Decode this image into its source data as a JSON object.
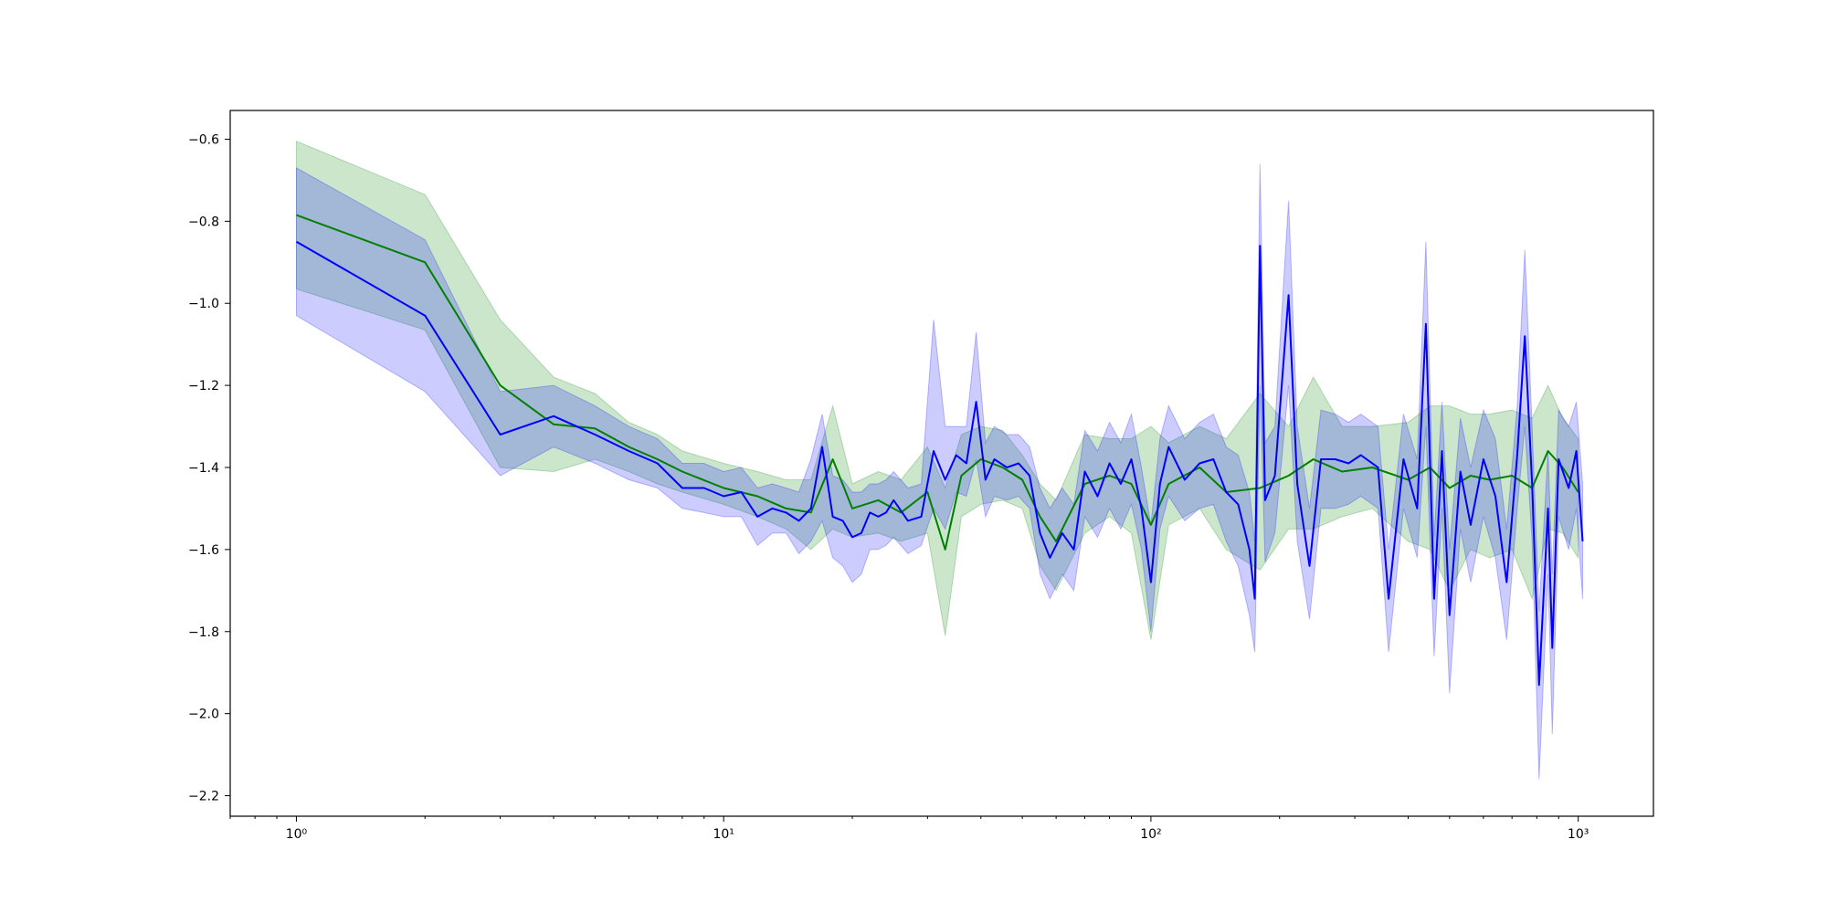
{
  "chart_data": {
    "type": "line",
    "title": "",
    "xlabel": "",
    "ylabel": "",
    "x_scale": "log",
    "xlim": [
      0.7,
      1500
    ],
    "ylim": [
      -2.25,
      -0.53
    ],
    "grid": false,
    "legend": "none",
    "x_ticks": [
      {
        "value": 1,
        "label": "10⁰"
      },
      {
        "value": 10,
        "label": "10¹"
      },
      {
        "value": 100,
        "label": "10²"
      },
      {
        "value": 1000,
        "label": "10³"
      }
    ],
    "y_ticks": [
      {
        "value": -0.6,
        "label": "−0.6"
      },
      {
        "value": -0.8,
        "label": "−0.8"
      },
      {
        "value": -1.0,
        "label": "−1.0"
      },
      {
        "value": -1.2,
        "label": "−1.2"
      },
      {
        "value": -1.4,
        "label": "−1.4"
      },
      {
        "value": -1.6,
        "label": "−1.6"
      },
      {
        "value": -1.8,
        "label": "−1.8"
      },
      {
        "value": -2.0,
        "label": "−2.0"
      },
      {
        "value": -2.2,
        "label": "−2.2"
      }
    ],
    "series": [
      {
        "color": "#008000",
        "band_color": "#008000",
        "band_opacity": 0.2,
        "points": [
          [
            1,
            -0.785,
            -0.965,
            -0.605
          ],
          [
            2,
            -0.9,
            -1.065,
            -0.735
          ],
          [
            3,
            -1.2,
            -1.4,
            -1.04
          ],
          [
            4,
            -1.295,
            -1.41,
            -1.18
          ],
          [
            5,
            -1.305,
            -1.38,
            -1.22
          ],
          [
            6,
            -1.35,
            -1.41,
            -1.29
          ],
          [
            7,
            -1.38,
            -1.44,
            -1.32
          ],
          [
            8,
            -1.41,
            -1.46,
            -1.36
          ],
          [
            10,
            -1.45,
            -1.49,
            -1.39
          ],
          [
            12,
            -1.47,
            -1.52,
            -1.41
          ],
          [
            14,
            -1.5,
            -1.55,
            -1.43
          ],
          [
            16,
            -1.51,
            -1.6,
            -1.43
          ],
          [
            18,
            -1.38,
            -1.55,
            -1.25
          ],
          [
            20,
            -1.5,
            -1.57,
            -1.44
          ],
          [
            23,
            -1.48,
            -1.56,
            -1.41
          ],
          [
            26,
            -1.51,
            -1.58,
            -1.43
          ],
          [
            30,
            -1.46,
            -1.56,
            -1.35
          ],
          [
            33,
            -1.6,
            -1.81,
            -1.45
          ],
          [
            36,
            -1.42,
            -1.52,
            -1.32
          ],
          [
            40,
            -1.38,
            -1.49,
            -1.3
          ],
          [
            45,
            -1.4,
            -1.48,
            -1.31
          ],
          [
            50,
            -1.43,
            -1.5,
            -1.37
          ],
          [
            55,
            -1.52,
            -1.64,
            -1.44
          ],
          [
            60,
            -1.58,
            -1.7,
            -1.48
          ],
          [
            70,
            -1.44,
            -1.56,
            -1.32
          ],
          [
            80,
            -1.42,
            -1.52,
            -1.33
          ],
          [
            90,
            -1.44,
            -1.56,
            -1.33
          ],
          [
            100,
            -1.54,
            -1.82,
            -1.3
          ],
          [
            110,
            -1.44,
            -1.54,
            -1.34
          ],
          [
            130,
            -1.4,
            -1.5,
            -1.3
          ],
          [
            150,
            -1.46,
            -1.6,
            -1.33
          ],
          [
            180,
            -1.45,
            -1.65,
            -1.22
          ],
          [
            210,
            -1.42,
            -1.55,
            -1.3
          ],
          [
            240,
            -1.38,
            -1.55,
            -1.18
          ],
          [
            280,
            -1.41,
            -1.52,
            -1.3
          ],
          [
            330,
            -1.4,
            -1.5,
            -1.3
          ],
          [
            400,
            -1.43,
            -1.58,
            -1.29
          ],
          [
            450,
            -1.4,
            -1.6,
            -1.25
          ],
          [
            500,
            -1.45,
            -1.7,
            -1.25
          ],
          [
            560,
            -1.42,
            -1.6,
            -1.27
          ],
          [
            620,
            -1.43,
            -1.62,
            -1.27
          ],
          [
            700,
            -1.42,
            -1.6,
            -1.26
          ],
          [
            780,
            -1.45,
            -1.72,
            -1.28
          ],
          [
            850,
            -1.36,
            -1.55,
            -1.2
          ],
          [
            920,
            -1.4,
            -1.56,
            -1.28
          ],
          [
            1000,
            -1.46,
            -1.62,
            -1.33
          ]
        ]
      },
      {
        "color": "#0000ff",
        "band_color": "#0000ff",
        "band_opacity": 0.2,
        "points": [
          [
            1,
            -0.85,
            -1.03,
            -0.67
          ],
          [
            2,
            -1.03,
            -1.215,
            -0.845
          ],
          [
            3,
            -1.32,
            -1.42,
            -1.215
          ],
          [
            4,
            -1.275,
            -1.35,
            -1.2
          ],
          [
            5,
            -1.32,
            -1.39,
            -1.25
          ],
          [
            6,
            -1.36,
            -1.43,
            -1.3
          ],
          [
            7,
            -1.39,
            -1.45,
            -1.33
          ],
          [
            8,
            -1.45,
            -1.5,
            -1.39
          ],
          [
            9,
            -1.45,
            -1.51,
            -1.39
          ],
          [
            10,
            -1.47,
            -1.52,
            -1.41
          ],
          [
            11,
            -1.46,
            -1.52,
            -1.4
          ],
          [
            12,
            -1.52,
            -1.59,
            -1.45
          ],
          [
            13,
            -1.5,
            -1.56,
            -1.44
          ],
          [
            14,
            -1.51,
            -1.56,
            -1.45
          ],
          [
            15,
            -1.53,
            -1.61,
            -1.46
          ],
          [
            16,
            -1.5,
            -1.58,
            -1.38
          ],
          [
            17,
            -1.35,
            -1.53,
            -1.27
          ],
          [
            18,
            -1.52,
            -1.62,
            -1.42
          ],
          [
            19,
            -1.53,
            -1.64,
            -1.43
          ],
          [
            20,
            -1.57,
            -1.68,
            -1.46
          ],
          [
            21,
            -1.56,
            -1.66,
            -1.46
          ],
          [
            22,
            -1.51,
            -1.6,
            -1.44
          ],
          [
            23,
            -1.52,
            -1.6,
            -1.44
          ],
          [
            24,
            -1.51,
            -1.59,
            -1.43
          ],
          [
            25,
            -1.48,
            -1.57,
            -1.41
          ],
          [
            27,
            -1.53,
            -1.61,
            -1.45
          ],
          [
            29,
            -1.52,
            -1.59,
            -1.44
          ],
          [
            31,
            -1.36,
            -1.5,
            -1.04
          ],
          [
            33,
            -1.43,
            -1.55,
            -1.3
          ],
          [
            35,
            -1.37,
            -1.46,
            -1.3
          ],
          [
            37,
            -1.39,
            -1.47,
            -1.3
          ],
          [
            39,
            -1.24,
            -1.38,
            -1.07
          ],
          [
            41,
            -1.43,
            -1.52,
            -1.34
          ],
          [
            43,
            -1.38,
            -1.47,
            -1.3
          ],
          [
            46,
            -1.4,
            -1.48,
            -1.32
          ],
          [
            49,
            -1.39,
            -1.47,
            -1.32
          ],
          [
            52,
            -1.42,
            -1.5,
            -1.35
          ],
          [
            55,
            -1.56,
            -1.66,
            -1.45
          ],
          [
            58,
            -1.62,
            -1.72,
            -1.5
          ],
          [
            62,
            -1.56,
            -1.66,
            -1.45
          ],
          [
            66,
            -1.6,
            -1.7,
            -1.49
          ],
          [
            70,
            -1.41,
            -1.52,
            -1.31
          ],
          [
            75,
            -1.47,
            -1.57,
            -1.36
          ],
          [
            80,
            -1.39,
            -1.5,
            -1.29
          ],
          [
            85,
            -1.44,
            -1.55,
            -1.34
          ],
          [
            90,
            -1.38,
            -1.49,
            -1.27
          ],
          [
            95,
            -1.5,
            -1.6,
            -1.4
          ],
          [
            100,
            -1.68,
            -1.8,
            -1.54
          ],
          [
            105,
            -1.44,
            -1.55,
            -1.33
          ],
          [
            110,
            -1.35,
            -1.47,
            -1.25
          ],
          [
            120,
            -1.43,
            -1.53,
            -1.33
          ],
          [
            130,
            -1.39,
            -1.5,
            -1.29
          ],
          [
            140,
            -1.38,
            -1.49,
            -1.27
          ],
          [
            150,
            -1.46,
            -1.58,
            -1.35
          ],
          [
            160,
            -1.49,
            -1.64,
            -1.37
          ],
          [
            170,
            -1.6,
            -1.76,
            -1.46
          ],
          [
            175,
            -1.72,
            -1.85,
            -1.58
          ],
          [
            180,
            -0.86,
            -1.2,
            -0.66
          ],
          [
            185,
            -1.48,
            -1.63,
            -1.34
          ],
          [
            195,
            -1.42,
            -1.56,
            -1.3
          ],
          [
            210,
            -0.98,
            -1.2,
            -0.75
          ],
          [
            220,
            -1.44,
            -1.58,
            -1.3
          ],
          [
            235,
            -1.64,
            -1.77,
            -1.5
          ],
          [
            250,
            -1.38,
            -1.5,
            -1.26
          ],
          [
            270,
            -1.38,
            -1.5,
            -1.27
          ],
          [
            290,
            -1.39,
            -1.49,
            -1.29
          ],
          [
            310,
            -1.37,
            -1.47,
            -1.27
          ],
          [
            340,
            -1.4,
            -1.5,
            -1.3
          ],
          [
            360,
            -1.72,
            -1.85,
            -1.6
          ],
          [
            390,
            -1.38,
            -1.5,
            -1.27
          ],
          [
            420,
            -1.5,
            -1.62,
            -1.38
          ],
          [
            440,
            -1.05,
            -1.3,
            -0.85
          ],
          [
            460,
            -1.72,
            -1.86,
            -1.57
          ],
          [
            480,
            -1.36,
            -1.5,
            -1.24
          ],
          [
            500,
            -1.76,
            -1.95,
            -1.6
          ],
          [
            530,
            -1.41,
            -1.55,
            -1.28
          ],
          [
            560,
            -1.54,
            -1.68,
            -1.4
          ],
          [
            600,
            -1.38,
            -1.52,
            -1.26
          ],
          [
            640,
            -1.47,
            -1.62,
            -1.33
          ],
          [
            680,
            -1.68,
            -1.82,
            -1.55
          ],
          [
            720,
            -1.37,
            -1.5,
            -1.25
          ],
          [
            750,
            -1.08,
            -1.3,
            -0.87
          ],
          [
            780,
            -1.44,
            -1.58,
            -1.3
          ],
          [
            810,
            -1.93,
            -2.16,
            -1.75
          ],
          [
            850,
            -1.5,
            -1.66,
            -1.36
          ],
          [
            870,
            -1.84,
            -2.05,
            -1.66
          ],
          [
            900,
            -1.38,
            -1.52,
            -1.26
          ],
          [
            950,
            -1.45,
            -1.6,
            -1.3
          ],
          [
            990,
            -1.36,
            -1.5,
            -1.24
          ],
          [
            1024,
            -1.58,
            -1.72,
            -1.44
          ]
        ]
      }
    ]
  }
}
